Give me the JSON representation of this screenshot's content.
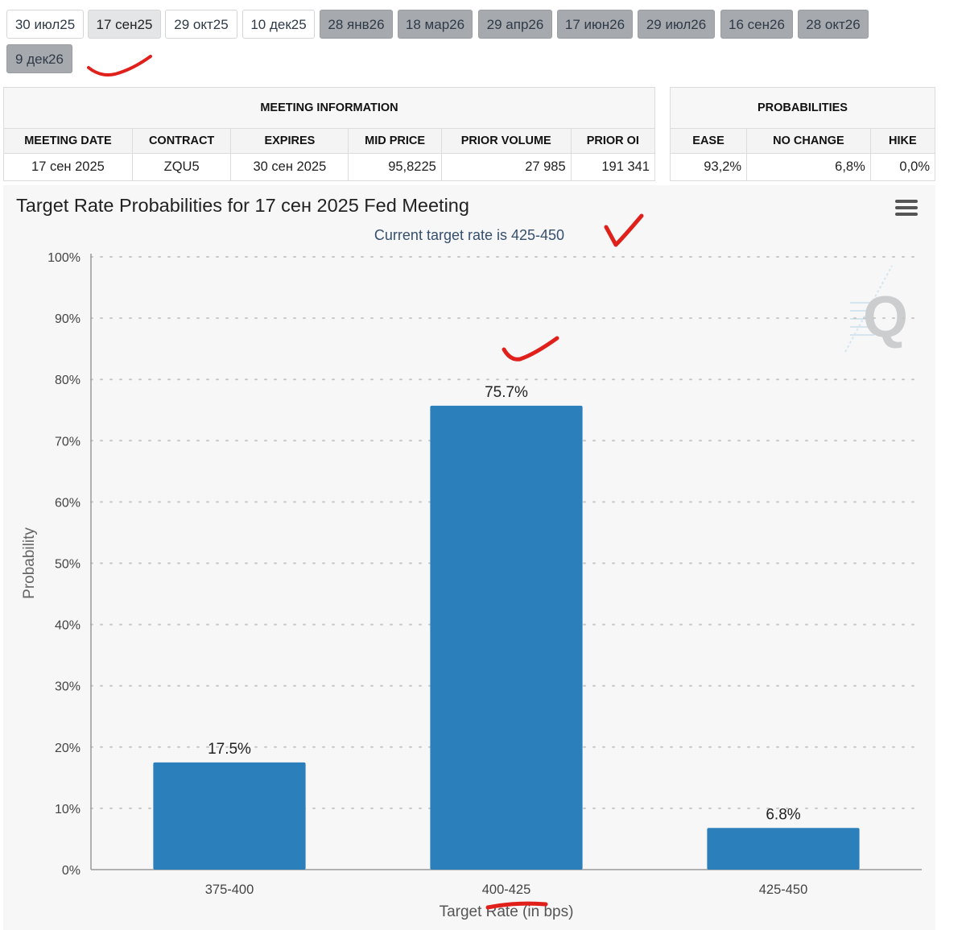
{
  "tabs": [
    {
      "label": "30 июл25",
      "state": "past"
    },
    {
      "label": "17 сен25",
      "state": "active"
    },
    {
      "label": "29 окт25",
      "state": "past"
    },
    {
      "label": "10 дек25",
      "state": "past"
    },
    {
      "label": "28 янв26",
      "state": "future"
    },
    {
      "label": "18 мар26",
      "state": "future"
    },
    {
      "label": "29 апр26",
      "state": "future"
    },
    {
      "label": "17 июн26",
      "state": "future"
    },
    {
      "label": "29 июл26",
      "state": "future"
    },
    {
      "label": "16 сен26",
      "state": "future"
    },
    {
      "label": "28 окт26",
      "state": "future"
    },
    {
      "label": "9 дек26",
      "state": "future"
    }
  ],
  "meeting_info": {
    "header": "MEETING INFORMATION",
    "columns": {
      "meeting_date": "MEETING DATE",
      "contract": "CONTRACT",
      "expires": "EXPIRES",
      "mid_price": "MID PRICE",
      "prior_volume": "PRIOR VOLUME",
      "prior_oi": "PRIOR OI"
    },
    "row": {
      "meeting_date": "17 сен 2025",
      "contract": "ZQU5",
      "expires": "30 сен 2025",
      "mid_price": "95,8225",
      "prior_volume": "27 985",
      "prior_oi": "191 341"
    }
  },
  "probabilities": {
    "header": "PROBABILITIES",
    "columns": {
      "ease": "EASE",
      "no_change": "NO CHANGE",
      "hike": "HIKE"
    },
    "row": {
      "ease": "93,2%",
      "no_change": "6,8%",
      "hike": "0,0%"
    }
  },
  "chart": {
    "title": "Target Rate Probabilities for 17 сен 2025 Fed Meeting",
    "subtitle": "Current target rate is 425-450",
    "menu_icon": "hamburger-menu-icon",
    "watermark": "Q"
  },
  "chart_data": {
    "type": "bar",
    "title": "Target Rate Probabilities for 17 сен 2025 Fed Meeting",
    "subtitle": "Current target rate is 425-450",
    "xlabel": "Target Rate (in bps)",
    "ylabel": "Probability",
    "categories": [
      "375-400",
      "400-425",
      "425-450"
    ],
    "values": [
      17.5,
      75.7,
      6.8
    ],
    "data_labels": [
      "17.5%",
      "75.7%",
      "6.8%"
    ],
    "ylim": [
      0,
      100
    ],
    "yticks": [
      "0%",
      "10%",
      "20%",
      "30%",
      "40%",
      "50%",
      "60%",
      "70%",
      "80%",
      "90%",
      "100%"
    ],
    "grid": true,
    "bar_color": "#2b7fba"
  },
  "annotations": {
    "color": "#e0201b"
  }
}
